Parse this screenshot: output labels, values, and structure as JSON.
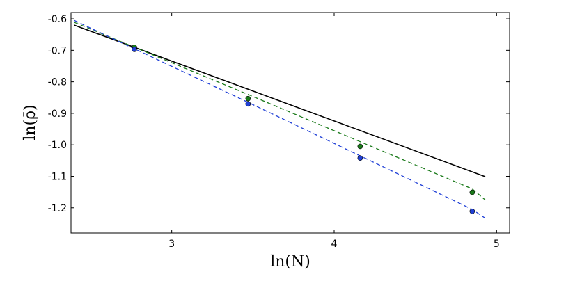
{
  "chart_data": {
    "type": "line",
    "title": "",
    "xlabel": "ln(N)",
    "ylabel": "ln(ρ̄)",
    "xlim": [
      2.38,
      5.08
    ],
    "ylim": [
      -1.28,
      -0.58
    ],
    "xticks": [
      3,
      4,
      5
    ],
    "xtick_labels": [
      "3",
      "4",
      "5"
    ],
    "yticks": [
      -0.6,
      -0.7,
      -0.8,
      -0.9,
      -1.0,
      -1.1,
      -1.2
    ],
    "ytick_labels": [
      "-0.6",
      "-0.7",
      "-0.8",
      "-0.9",
      "-1.0",
      "-1.1",
      "-1.2"
    ],
    "grid": false,
    "colors": {
      "black": "#000000",
      "green": "#1a7a1a",
      "blue": "#1f3fd6"
    },
    "series": [
      {
        "style": "solid",
        "color": "black",
        "x": [
          2.4,
          4.93
        ],
        "y": [
          -0.62,
          -1.101
        ]
      },
      {
        "style": "dashed",
        "color": "green",
        "x": [
          2.4,
          2.77,
          3.47,
          4.16,
          4.85,
          4.93
        ],
        "y": [
          -0.611,
          -0.69,
          -0.84,
          -0.99,
          -1.14,
          -1.175
        ]
      },
      {
        "style": "dashed",
        "color": "blue",
        "x": [
          2.4,
          2.77,
          3.47,
          4.16,
          4.85,
          4.93
        ],
        "y": [
          -0.605,
          -0.695,
          -0.865,
          -1.035,
          -1.205,
          -1.233
        ]
      },
      {
        "style": "points",
        "color": "green",
        "x": [
          2.77,
          3.47,
          4.16,
          4.85
        ],
        "y": [
          -0.69,
          -0.853,
          -1.005,
          -1.151
        ]
      },
      {
        "style": "points",
        "color": "blue",
        "x": [
          2.77,
          3.47,
          4.16,
          4.85
        ],
        "y": [
          -0.697,
          -0.87,
          -1.042,
          -1.211
        ]
      }
    ]
  }
}
